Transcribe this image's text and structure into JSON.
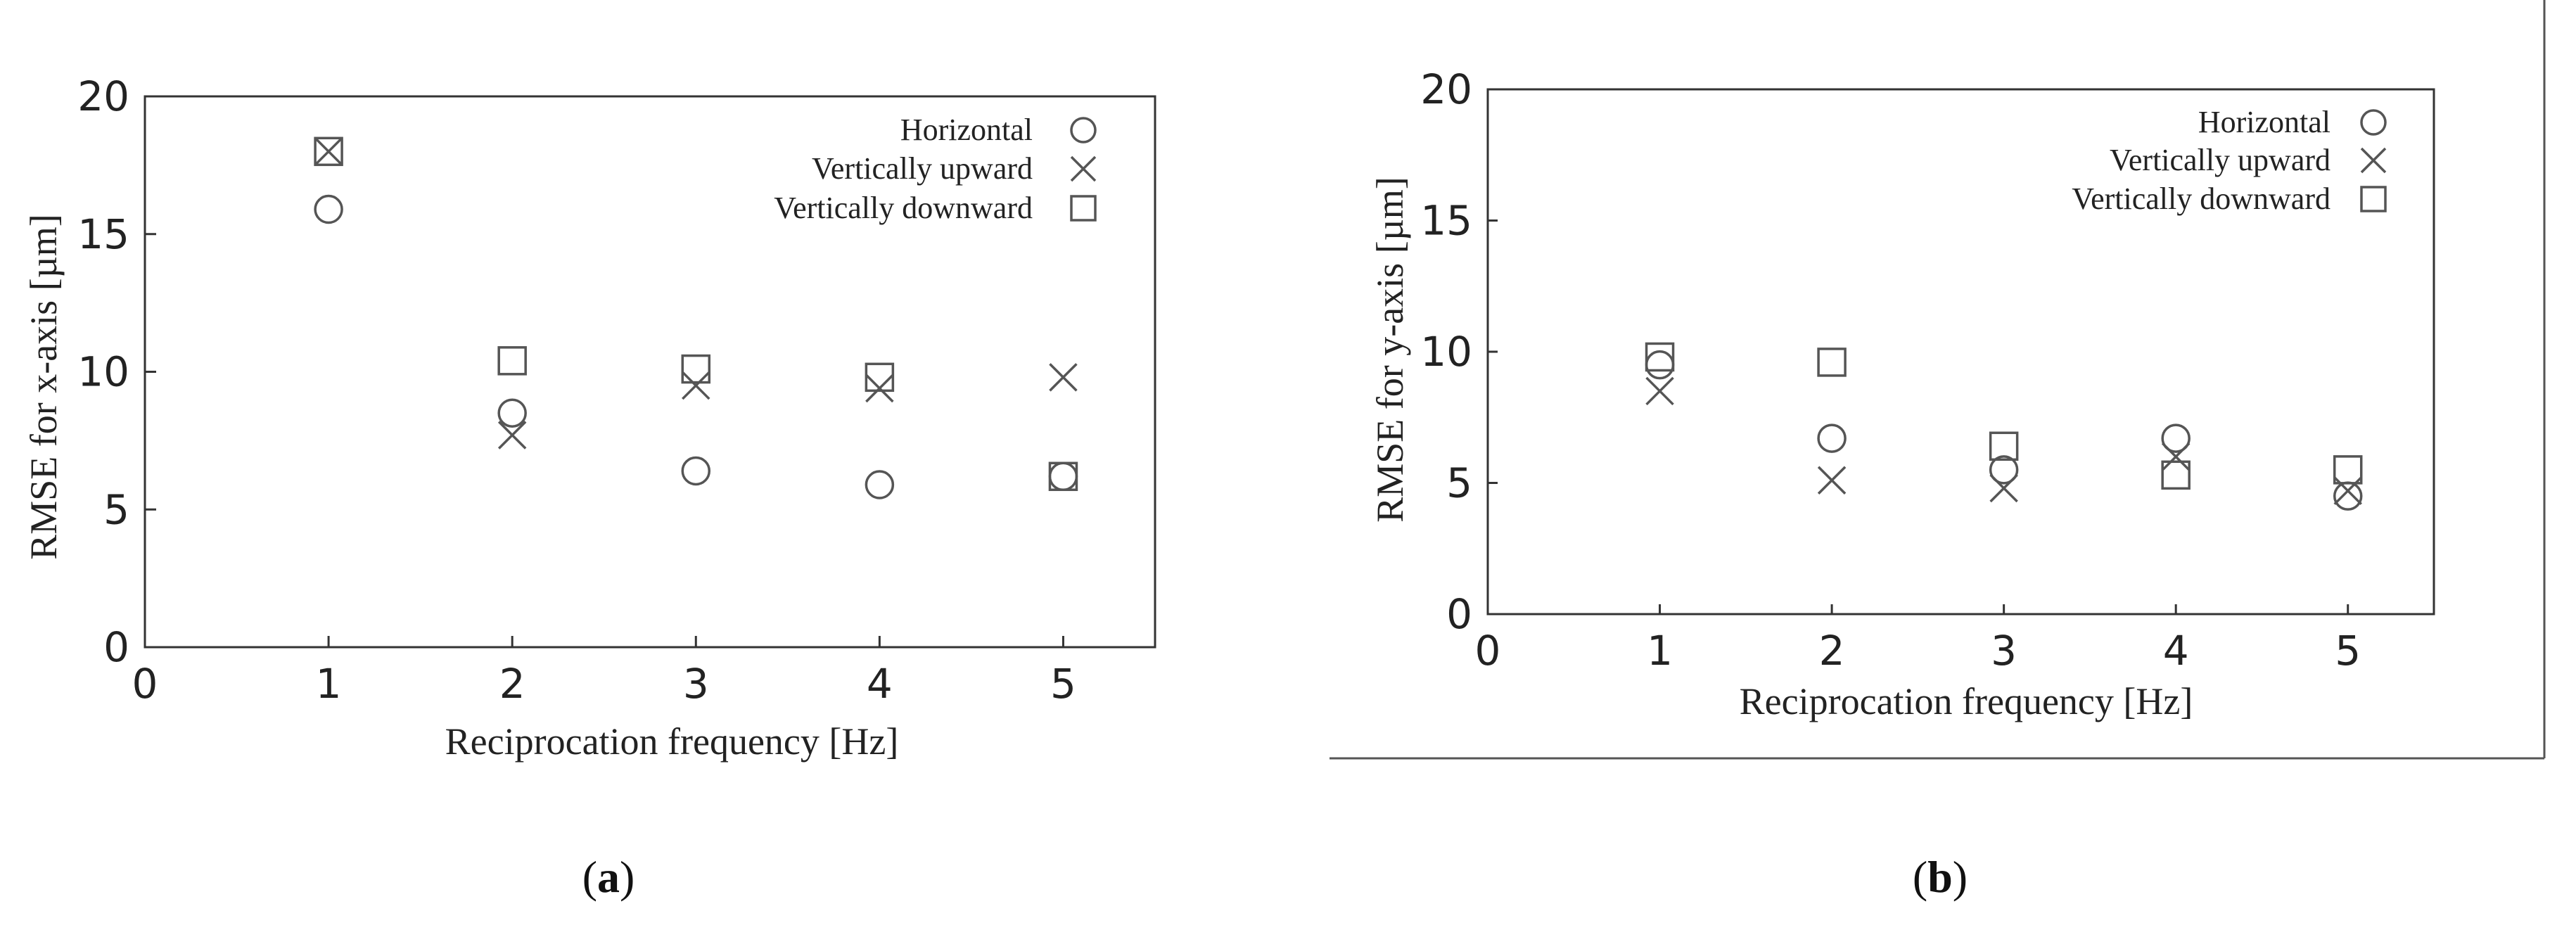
{
  "colors": {
    "marker": "#555555",
    "axis": "#333333",
    "text": "#222222"
  },
  "chart_data": [
    {
      "type": "scatter",
      "panel_label": "a",
      "xlabel": "Reciprocation frequency [Hz]",
      "ylabel": "RMSE for x-axis [µm]",
      "xlim": [
        0,
        5.5
      ],
      "ylim": [
        0,
        20
      ],
      "xticks": [
        "0",
        "1",
        "2",
        "3",
        "4",
        "5"
      ],
      "yticks": [
        "0",
        "5",
        "10",
        "15",
        "20"
      ],
      "legend_position": "top-right",
      "series": [
        {
          "name": "Horizontal",
          "marker": "circle",
          "x": [
            1,
            2,
            3,
            4,
            5
          ],
          "y": [
            15.9,
            8.5,
            6.4,
            5.9,
            6.2
          ]
        },
        {
          "name": "Vertically upward",
          "marker": "cross",
          "x": [
            1,
            2,
            3,
            4,
            5
          ],
          "y": [
            18.0,
            7.7,
            9.5,
            9.4,
            9.8
          ]
        },
        {
          "name": "Vertically downward",
          "marker": "square",
          "x": [
            1,
            2,
            3,
            4,
            5
          ],
          "y": [
            18.0,
            10.4,
            10.1,
            9.8,
            6.2
          ]
        }
      ]
    },
    {
      "type": "scatter",
      "panel_label": "b",
      "xlabel": "Reciprocation frequency [Hz]",
      "ylabel": "RMSE for y-axis [µm]",
      "xlim": [
        0,
        5.5
      ],
      "ylim": [
        0,
        20
      ],
      "xticks": [
        "0",
        "1",
        "2",
        "3",
        "4",
        "5"
      ],
      "yticks": [
        "0",
        "5",
        "10",
        "15",
        "20"
      ],
      "legend_position": "top-right",
      "series": [
        {
          "name": "Horizontal",
          "marker": "circle",
          "x": [
            1,
            2,
            3,
            4,
            5
          ],
          "y": [
            9.5,
            6.7,
            5.5,
            6.7,
            4.5
          ]
        },
        {
          "name": "Vertically upward",
          "marker": "cross",
          "x": [
            1,
            2,
            3,
            4,
            5
          ],
          "y": [
            8.5,
            5.1,
            4.8,
            6.0,
            4.7
          ]
        },
        {
          "name": "Vertically downward",
          "marker": "square",
          "x": [
            1,
            2,
            3,
            4,
            5
          ],
          "y": [
            9.8,
            9.6,
            6.4,
            5.3,
            5.5
          ]
        }
      ]
    }
  ]
}
